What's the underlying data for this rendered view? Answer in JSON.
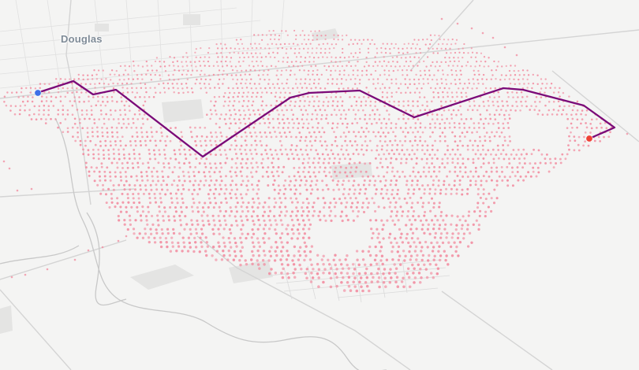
{
  "map": {
    "place_label": "Douglas",
    "colors": {
      "background": "#f4f4f3",
      "street_grid": "#dedede",
      "road": "#d2d2d2",
      "river": "#c9c9c9",
      "block_fill": "#e3e3e2",
      "dot": "#f28a9e",
      "route": "#7a0a78",
      "start_marker": "#3d6fe6",
      "end_marker": "#ee4135"
    },
    "markers": [
      {
        "role": "start",
        "icon": "start-marker-icon"
      },
      {
        "role": "end",
        "icon": "end-marker-icon"
      }
    ],
    "route": {
      "icon": "route-line"
    },
    "point_layer": {
      "icon": "address-points-layer"
    }
  }
}
